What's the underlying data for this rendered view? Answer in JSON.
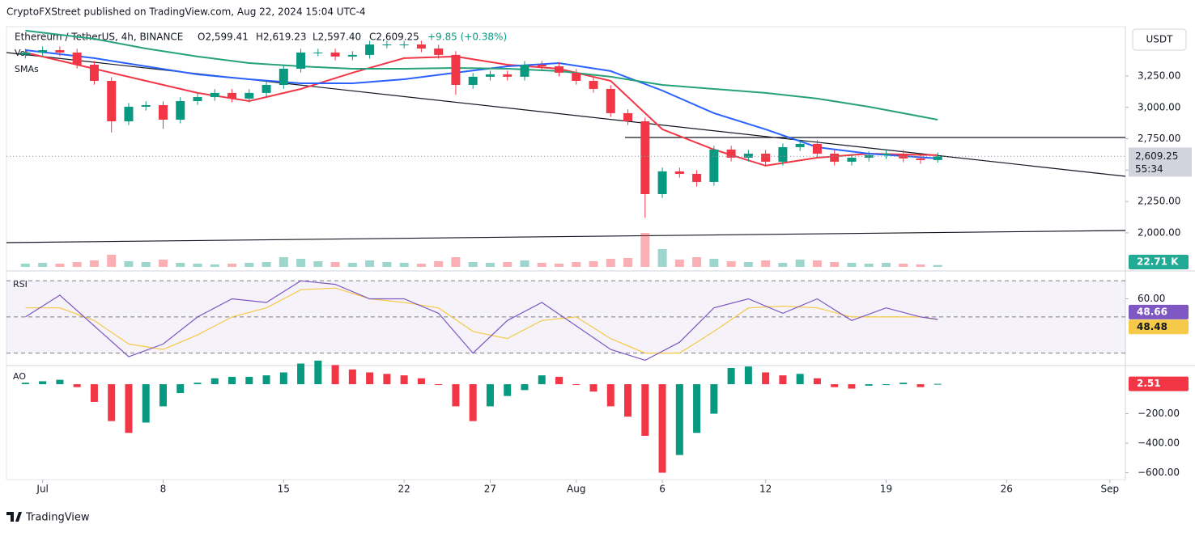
{
  "header": {
    "publisher": "CryptoFXStreet published on TradingView.com, Aug 22, 2024 15:04 UTC-4",
    "footer": "TradingView"
  },
  "chart_data": [
    {
      "type": "candlestick",
      "symbol": "Ethereum / TetherUS, 4h, BINANCE",
      "open_label": "O2,599.41",
      "high_label": "H2,619.23",
      "low_label": "L2,597.40",
      "close_text": "C2,609.25",
      "change_label": "+9.85 (+0.38%)",
      "volume_label": "Vol",
      "overlay_label": "SMAs",
      "currency": "USDT",
      "close_label": "2,609.25",
      "countdown": "55:34",
      "up_color": "#089981",
      "down_color": "#f23645",
      "x": [
        -1,
        0,
        1,
        2,
        3,
        4,
        5,
        6,
        7,
        8,
        9,
        10,
        11,
        12,
        13,
        14,
        15,
        16,
        17,
        18,
        19,
        20,
        21,
        22,
        23,
        24,
        25,
        26,
        27,
        28,
        29,
        30,
        31,
        32,
        33,
        34,
        35,
        36,
        37,
        38,
        39,
        40,
        41,
        42,
        43,
        44,
        45,
        46,
        47,
        48,
        49,
        50,
        51,
        52
      ],
      "open": [
        3420,
        3437,
        3456,
        3437,
        3340,
        3211,
        2889,
        3005,
        3018,
        2902,
        3050,
        3082,
        3115,
        3070,
        3115,
        3179,
        3308,
        3437,
        3437,
        3405,
        3418,
        3501,
        3501,
        3501,
        3469,
        3418,
        3179,
        3244,
        3263,
        3244,
        3340,
        3327,
        3276,
        3211,
        3147,
        2954,
        2889,
        2309,
        2490,
        2470,
        2406,
        2664,
        2599,
        2631,
        2567,
        2683,
        2709,
        2631,
        2567,
        2599,
        2619,
        2631,
        2593,
        2580
      ],
      "high": [
        3467,
        3486,
        3486,
        3467,
        3370,
        3241,
        3035,
        3048,
        3048,
        3080,
        3112,
        3145,
        3145,
        3145,
        3209,
        3338,
        3467,
        3467,
        3467,
        3448,
        3531,
        3531,
        3531,
        3531,
        3499,
        3448,
        3274,
        3293,
        3293,
        3370,
        3370,
        3357,
        3306,
        3241,
        3177,
        2984,
        2919,
        2520,
        2520,
        2500,
        2694,
        2694,
        2661,
        2661,
        2713,
        2739,
        2739,
        2661,
        2629,
        2649,
        2661,
        2661,
        2623,
        2640
      ],
      "low": [
        3390,
        3407,
        3407,
        3310,
        3181,
        2800,
        2859,
        2975,
        2830,
        2872,
        3020,
        3052,
        3040,
        3040,
        3085,
        3149,
        3278,
        3407,
        3375,
        3375,
        3388,
        3471,
        3471,
        3439,
        3388,
        3100,
        3149,
        3214,
        3214,
        3214,
        3297,
        3246,
        3181,
        3117,
        2924,
        2859,
        2120,
        2279,
        2440,
        2370,
        2376,
        2569,
        2569,
        2537,
        2537,
        2653,
        2601,
        2537,
        2537,
        2569,
        2589,
        2563,
        2550,
        2560
      ],
      "close": [
        3437,
        3456,
        3437,
        3340,
        3211,
        2889,
        3005,
        3018,
        2902,
        3050,
        3082,
        3115,
        3070,
        3115,
        3179,
        3308,
        3437,
        3437,
        3405,
        3418,
        3501,
        3501,
        3501,
        3469,
        3418,
        3179,
        3244,
        3263,
        3244,
        3340,
        3327,
        3276,
        3211,
        3147,
        2954,
        2889,
        2309,
        2490,
        2470,
        2406,
        2664,
        2599,
        2631,
        2567,
        2683,
        2709,
        2631,
        2567,
        2599,
        2619,
        2631,
        2593,
        2580,
        2609.25
      ],
      "volume": {
        "values": [
          40,
          50,
          40,
          60,
          80,
          150,
          70,
          60,
          90,
          50,
          40,
          30,
          40,
          50,
          60,
          120,
          100,
          70,
          60,
          50,
          80,
          60,
          50,
          40,
          70,
          120,
          60,
          50,
          60,
          80,
          50,
          40,
          60,
          70,
          100,
          110,
          420,
          220,
          90,
          120,
          100,
          70,
          60,
          80,
          50,
          90,
          80,
          60,
          50,
          40,
          50,
          40,
          30,
          22.71
        ],
        "ylim": [
          0,
          450
        ],
        "last_label": "22.71 K"
      },
      "series": [
        {
          "name": "SMA red",
          "color": "#f23645",
          "x": [
            -1,
            3,
            6,
            9,
            12,
            15,
            18,
            21,
            24,
            27,
            30,
            33,
            36,
            39,
            42,
            45,
            48,
            52
          ],
          "values": [
            3437,
            3308,
            3211,
            3115,
            3050,
            3147,
            3276,
            3392,
            3405,
            3340,
            3308,
            3211,
            2825,
            2664,
            2535,
            2599,
            2631,
            2619
          ]
        },
        {
          "name": "SMA blue",
          "color": "#2962ff",
          "x": [
            -1,
            3,
            6,
            9,
            12,
            15,
            18,
            21,
            24,
            27,
            30,
            33,
            36,
            39,
            42,
            45,
            48,
            52
          ],
          "values": [
            3456,
            3392,
            3327,
            3263,
            3224,
            3192,
            3192,
            3224,
            3276,
            3327,
            3353,
            3289,
            3134,
            2954,
            2825,
            2683,
            2631,
            2593
          ]
        },
        {
          "name": "SMA green",
          "color": "#26a17b",
          "x": [
            -1,
            3,
            6,
            9,
            12,
            15,
            18,
            21,
            24,
            27,
            30,
            33,
            36,
            39,
            42,
            45,
            48,
            52
          ],
          "values": [
            3611,
            3546,
            3469,
            3405,
            3353,
            3327,
            3308,
            3308,
            3314,
            3308,
            3289,
            3244,
            3179,
            3147,
            3115,
            3070,
            3005,
            2902
          ]
        }
      ],
      "xlim": [
        -2.1,
        62.9
      ],
      "xticks": [
        {
          "value": 0,
          "label": "Jul"
        },
        {
          "value": 7,
          "label": "8"
        },
        {
          "value": 14,
          "label": "15"
        },
        {
          "value": 21,
          "label": "22"
        },
        {
          "value": 26,
          "label": "27"
        },
        {
          "value": 31,
          "label": "Aug"
        },
        {
          "value": 36,
          "label": "6"
        },
        {
          "value": 42,
          "label": "12"
        },
        {
          "value": 49,
          "label": "19"
        },
        {
          "value": 56,
          "label": "26"
        },
        {
          "value": 62,
          "label": "Sep"
        }
      ],
      "ylim": [
        1729,
        3630
      ],
      "yticks": [
        {
          "value": 2000,
          "label": "2,000.00"
        },
        {
          "value": 2250,
          "label": "2,250.00"
        },
        {
          "value": 2500,
          "label": "2,500.00"
        },
        {
          "value": 2750,
          "label": "2,750.00"
        },
        {
          "value": 3000,
          "label": "3,000.00"
        },
        {
          "value": 3250,
          "label": "3,250.00"
        }
      ],
      "grid": false
    },
    {
      "type": "line",
      "label": "RSI",
      "x": [
        -1,
        1,
        3,
        5,
        7,
        9,
        11,
        13,
        15,
        17,
        19,
        21,
        23,
        25,
        27,
        29,
        31,
        33,
        35,
        37,
        39,
        41,
        43,
        45,
        47,
        49,
        51,
        52
      ],
      "series": [
        {
          "name": "RSI",
          "color": "#7e57c2",
          "values": [
            50,
            62,
            45,
            28,
            35,
            50,
            60,
            58,
            70,
            68,
            60,
            60,
            52,
            30,
            48,
            58,
            45,
            32,
            26,
            36,
            55,
            60,
            52,
            60,
            48,
            55,
            50,
            48.66
          ]
        },
        {
          "name": "RSI-based MA",
          "color": "#f7c948",
          "values": [
            55,
            55,
            48,
            35,
            32,
            40,
            50,
            55,
            65,
            66,
            60,
            58,
            55,
            42,
            38,
            48,
            50,
            38,
            30,
            30,
            42,
            55,
            56,
            55,
            50,
            50,
            50,
            48.48
          ]
        }
      ],
      "bands": [
        30,
        50,
        70
      ],
      "band_color": "#7e57c2",
      "ylim": [
        24,
        73.2
      ],
      "yticks": [
        {
          "value": 60,
          "label": "60.00"
        }
      ]
    },
    {
      "type": "histogram",
      "label": "AO",
      "up_color": "#089981",
      "down_color": "#f23645",
      "x": [
        -1,
        0,
        1,
        2,
        3,
        4,
        5,
        6,
        7,
        8,
        9,
        10,
        11,
        12,
        13,
        14,
        15,
        16,
        17,
        18,
        19,
        20,
        21,
        22,
        23,
        24,
        25,
        26,
        27,
        28,
        29,
        30,
        31,
        32,
        33,
        34,
        35,
        36,
        37,
        38,
        39,
        40,
        41,
        42,
        43,
        44,
        45,
        46,
        47,
        48,
        49,
        50,
        51,
        52
      ],
      "values": [
        10,
        20,
        30,
        -20,
        -120,
        -250,
        -330,
        -260,
        -150,
        -60,
        10,
        40,
        50,
        50,
        60,
        80,
        140,
        160,
        130,
        100,
        80,
        70,
        60,
        40,
        0,
        -150,
        -250,
        -150,
        -80,
        -40,
        60,
        50,
        0,
        -50,
        -150,
        -220,
        -350,
        -600,
        -480,
        -330,
        -200,
        110,
        120,
        80,
        60,
        70,
        40,
        -20,
        -30,
        -10,
        0,
        10,
        -20,
        2.51
      ],
      "ylim": [
        -641,
        110
      ],
      "yticks": [
        {
          "value": -600,
          "label": "−600.00"
        },
        {
          "value": -400,
          "label": "−400.00"
        },
        {
          "value": -200,
          "label": "−200.00"
        }
      ]
    }
  ]
}
